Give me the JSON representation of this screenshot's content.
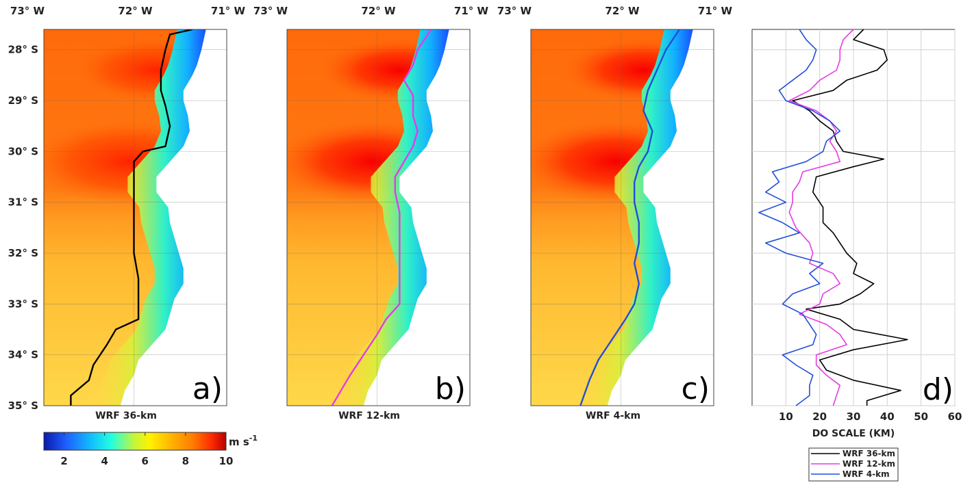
{
  "colors": {
    "black": "#000000",
    "magenta": "#e63ae6",
    "blue": "#1f4fd8"
  },
  "maps": {
    "lon_ticks": [
      "73° W",
      "72° W",
      "71° W"
    ],
    "lat_ticks": [
      "28° S",
      "29° S",
      "30° S",
      "31° S",
      "32° S",
      "33° S",
      "34° S",
      "35° S"
    ],
    "panels": [
      {
        "id": "a",
        "label": "a)",
        "caption": "WRF 36-km",
        "line_color": "#000000",
        "coastline_lon_offset": 0.0
      },
      {
        "id": "b",
        "label": "b)",
        "caption": "WRF 12-km",
        "line_color": "#e63ae6",
        "coastline_lon_offset": 0.0
      },
      {
        "id": "c",
        "label": "c)",
        "caption": "WRF 4-km",
        "line_color": "#1f4fd8",
        "coastline_lon_offset": 0.0
      }
    ]
  },
  "colorbar": {
    "unit": "m s",
    "unit_sup": "-1",
    "ticks": [
      "2",
      "4",
      "6",
      "8",
      "10"
    ],
    "range": [
      1,
      10
    ]
  },
  "chart_data": {
    "type": "line",
    "panel_label": "d)",
    "xlabel": "DO SCALE (KM)",
    "xlim": [
      0,
      60
    ],
    "xticks": [
      "10",
      "20",
      "30",
      "40",
      "50",
      "60"
    ],
    "ylim": [
      27.6,
      35.0
    ],
    "grid": true,
    "legend_position": "bottom",
    "series": [
      {
        "name": "WRF 36-km",
        "color": "#000000",
        "lat": [
          27.6,
          27.8,
          28.0,
          28.2,
          28.4,
          28.6,
          28.8,
          29.0,
          29.2,
          29.4,
          29.6,
          29.8,
          30.0,
          30.15,
          30.3,
          30.5,
          30.8,
          31.1,
          31.4,
          31.6,
          31.8,
          32.0,
          32.2,
          32.4,
          32.6,
          32.8,
          33.0,
          33.1,
          33.3,
          33.5,
          33.7,
          33.9,
          34.1,
          34.3,
          34.5,
          34.7,
          34.9,
          35.0
        ],
        "x": [
          33,
          30,
          39,
          40,
          37,
          28,
          24,
          12,
          17,
          20,
          24,
          25,
          27,
          39,
          30,
          19,
          18,
          21,
          21,
          24,
          26,
          28,
          31,
          30,
          36,
          32,
          26,
          16,
          26,
          30,
          46,
          30,
          20,
          22,
          30,
          44,
          34,
          34
        ]
      },
      {
        "name": "WRF 12-km",
        "color": "#e63ae6",
        "lat": [
          27.6,
          27.8,
          28.0,
          28.2,
          28.4,
          28.6,
          28.8,
          29.0,
          29.2,
          29.4,
          29.6,
          29.8,
          30.0,
          30.2,
          30.4,
          30.6,
          30.8,
          31.0,
          31.2,
          31.5,
          31.8,
          32.0,
          32.2,
          32.4,
          32.6,
          32.8,
          33.0,
          33.2,
          33.4,
          33.6,
          33.8,
          34.0,
          34.2,
          34.4,
          34.6,
          34.8,
          35.0
        ],
        "x": [
          30,
          27,
          26,
          26,
          25,
          20,
          17,
          11,
          19,
          23,
          25,
          23,
          25,
          26,
          15,
          14,
          12,
          12,
          11,
          13,
          17,
          18,
          17,
          24,
          26,
          21,
          20,
          14,
          22,
          26,
          28,
          19,
          19,
          22,
          26,
          25,
          24
        ]
      },
      {
        "name": "WRF 4-km",
        "color": "#1f4fd8",
        "lat": [
          27.6,
          27.8,
          28.0,
          28.2,
          28.4,
          28.6,
          28.8,
          29.0,
          29.2,
          29.4,
          29.6,
          29.8,
          30.0,
          30.2,
          30.4,
          30.6,
          30.8,
          31.0,
          31.2,
          31.4,
          31.6,
          31.8,
          32.0,
          32.2,
          32.4,
          32.6,
          32.8,
          33.0,
          33.2,
          33.4,
          33.6,
          33.8,
          34.0,
          34.2,
          34.4,
          34.6,
          34.8,
          35.0
        ],
        "x": [
          14,
          16,
          19,
          18,
          16,
          12,
          8,
          10,
          18,
          23,
          26,
          22,
          21,
          16,
          6,
          8,
          4,
          10,
          2,
          9,
          14,
          4,
          10,
          21,
          17,
          20,
          12,
          9,
          15,
          17,
          19,
          18,
          9,
          13,
          18,
          17,
          17,
          13
        ]
      }
    ]
  }
}
